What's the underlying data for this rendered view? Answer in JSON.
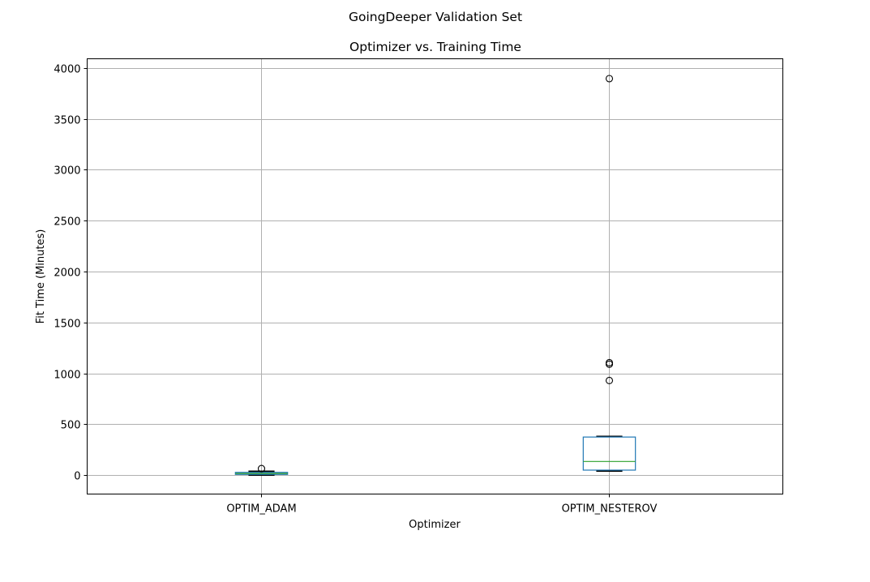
{
  "chart_data": {
    "type": "box",
    "suptitle": "GoingDeeper Validation Set",
    "title": "Optimizer vs. Training Time",
    "xlabel": "Optimizer",
    "ylabel": "Fit Time (Minutes)",
    "categories": [
      "OPTIM_ADAM",
      "OPTIM_NESTEROV"
    ],
    "ylim": [
      -185,
      4090
    ],
    "yticks": [
      0,
      500,
      1000,
      1500,
      2000,
      2500,
      3000,
      3500,
      4000
    ],
    "grid": true,
    "boxes": [
      {
        "category": "OPTIM_ADAM",
        "whisker_low": 2,
        "q1": 8,
        "median": 17,
        "q3": 28,
        "whisker_high": 38,
        "outliers": [
          65
        ]
      },
      {
        "category": "OPTIM_NESTEROV",
        "whisker_low": 42,
        "q1": 50,
        "median": 135,
        "q3": 375,
        "whisker_high": 380,
        "outliers": [
          930,
          1090,
          1105,
          3895
        ]
      }
    ],
    "colors": {
      "box": "#1f77b4",
      "median": "#2ca02c",
      "whisker": "#000000",
      "grid": "#b0b0b0",
      "flier": "#000000"
    }
  }
}
